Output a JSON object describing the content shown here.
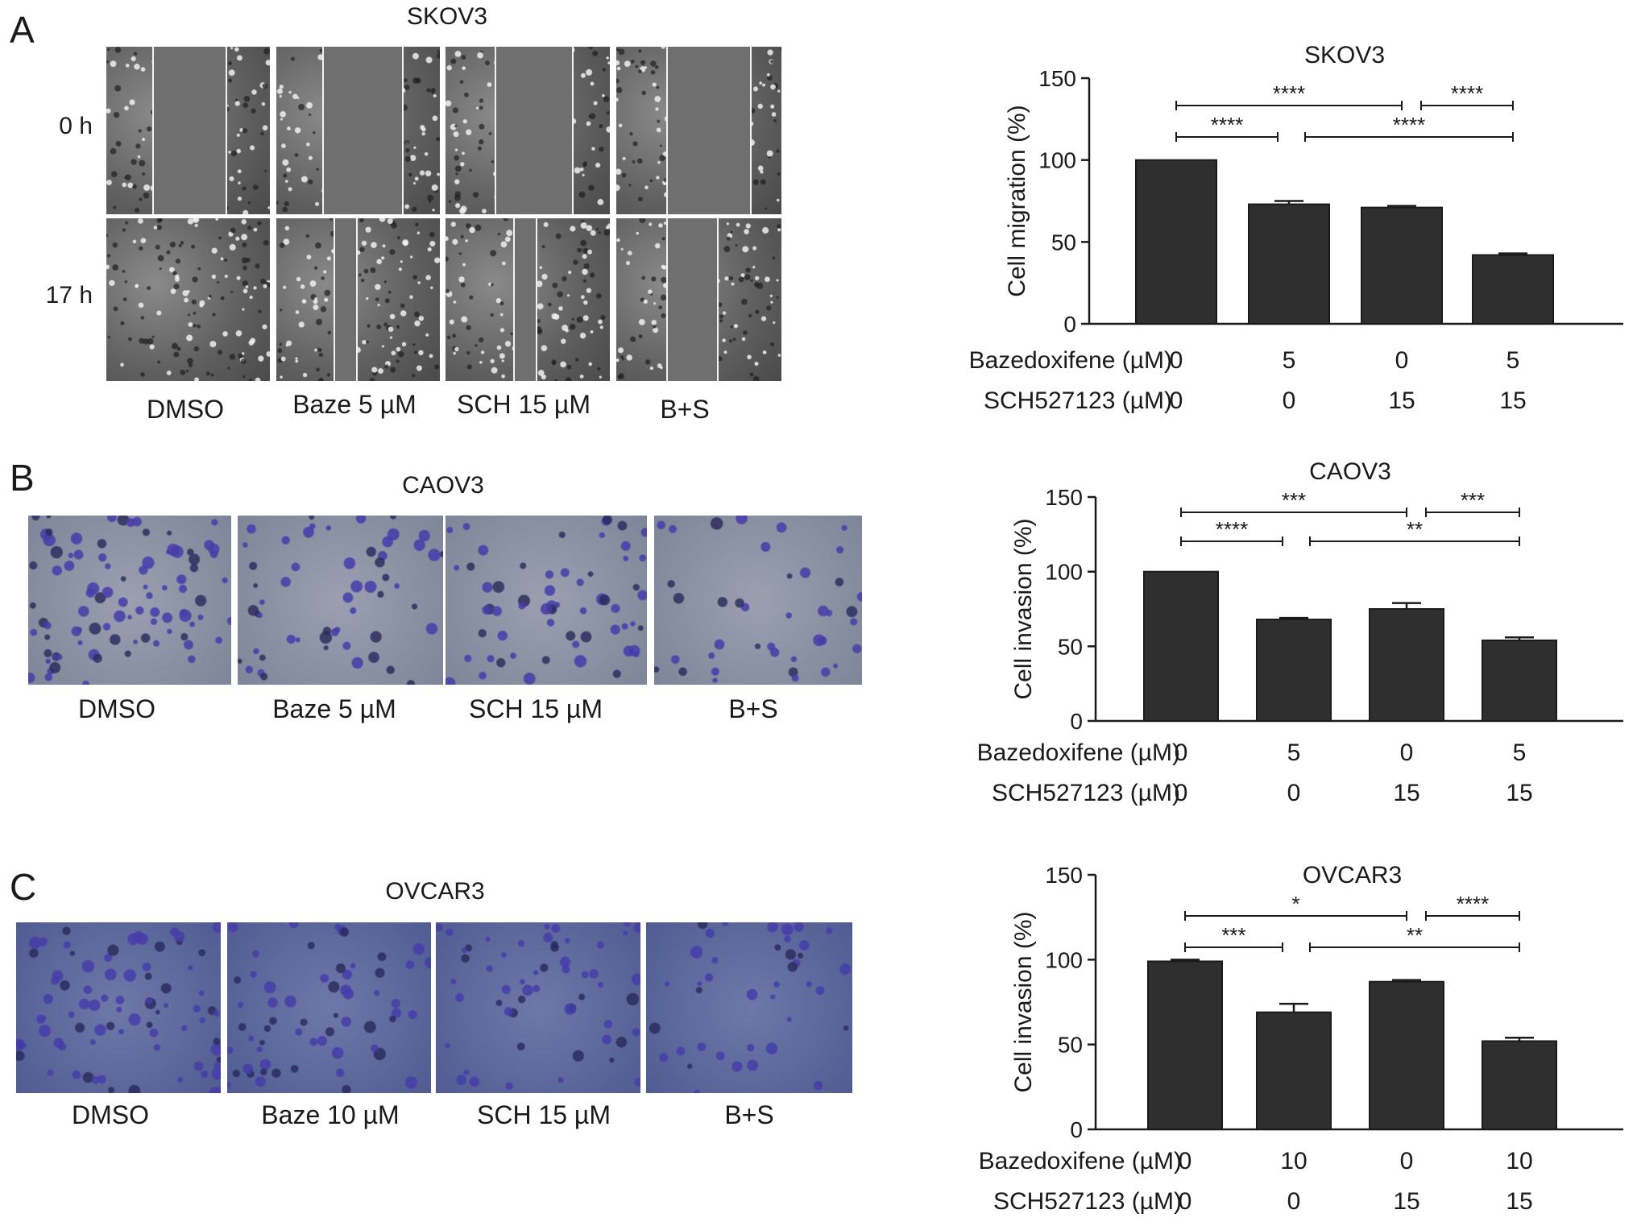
{
  "panels": [
    {
      "letter": "A",
      "image_title": "SKOV3",
      "row_labels": [
        "0 h",
        "17 h"
      ],
      "tile_labels": [
        "DMSO",
        "Baze 5 µM",
        "SCH 15 µM",
        "B+S"
      ],
      "image_style": "wound-healing-grayscale"
    },
    {
      "letter": "B",
      "image_title": "CAOV3",
      "tile_labels": [
        "DMSO",
        "Baze 5 µM",
        "SCH 15 µM",
        "B+S"
      ],
      "image_style": "transwell-crystal-violet"
    },
    {
      "letter": "C",
      "image_title": "OVCAR3",
      "tile_labels": [
        "DMSO",
        "Baze 10 µM",
        "SCH 15 µM",
        "B+S"
      ],
      "image_style": "transwell-crystal-violet"
    }
  ],
  "colors": {
    "bar": "#2f2f2f",
    "axis": "#1a1a1a",
    "stain": "#3a3fa8",
    "grayscale_bg": "#6e6e6e"
  },
  "chart_data": [
    {
      "type": "bar",
      "title": "SKOV3",
      "ylabel": "Cell migration (%)",
      "ylim": [
        0,
        150
      ],
      "yticks": [
        0,
        50,
        100,
        150
      ],
      "row_labels": [
        "Bazedoxifene (µM)",
        "SCH527123 (µM)"
      ],
      "conditions": [
        [
          "0",
          "5",
          "0",
          "5"
        ],
        [
          "0",
          "0",
          "15",
          "15"
        ]
      ],
      "values": [
        100,
        73,
        71,
        42
      ],
      "errors": [
        0,
        2,
        1,
        1
      ],
      "significance": [
        {
          "from": 0,
          "to": 2,
          "label": "****"
        },
        {
          "from": 2,
          "to": 3,
          "label": "****"
        },
        {
          "from": 0,
          "to": 1,
          "label": "****"
        },
        {
          "from": 1,
          "to": 3,
          "label": "****"
        }
      ]
    },
    {
      "type": "bar",
      "title": "CAOV3",
      "ylabel": "Cell invasion (%)",
      "ylim": [
        0,
        150
      ],
      "yticks": [
        0,
        50,
        100,
        150
      ],
      "row_labels": [
        "Bazedoxifene (µM)",
        "SCH527123 (µM)"
      ],
      "conditions": [
        [
          "0",
          "5",
          "0",
          "5"
        ],
        [
          "0",
          "0",
          "15",
          "15"
        ]
      ],
      "values": [
        100,
        68,
        75,
        54
      ],
      "errors": [
        0,
        1,
        4,
        2
      ],
      "significance": [
        {
          "from": 0,
          "to": 2,
          "label": "***"
        },
        {
          "from": 2,
          "to": 3,
          "label": "***"
        },
        {
          "from": 0,
          "to": 1,
          "label": "****"
        },
        {
          "from": 1,
          "to": 3,
          "label": "**"
        }
      ]
    },
    {
      "type": "bar",
      "title": "OVCAR3",
      "ylabel": "Cell invasion (%)",
      "ylim": [
        0,
        150
      ],
      "yticks": [
        0,
        50,
        100,
        150
      ],
      "row_labels": [
        "Bazedoxifene (µM)",
        "SCH527123 (µM)"
      ],
      "conditions": [
        [
          "0",
          "10",
          "0",
          "10"
        ],
        [
          "0",
          "0",
          "15",
          "15"
        ]
      ],
      "values": [
        99,
        69,
        87,
        52
      ],
      "errors": [
        1,
        5,
        1,
        2
      ],
      "significance": [
        {
          "from": 0,
          "to": 2,
          "label": "*"
        },
        {
          "from": 2,
          "to": 3,
          "label": "****"
        },
        {
          "from": 0,
          "to": 1,
          "label": "***"
        },
        {
          "from": 1,
          "to": 3,
          "label": "**"
        }
      ]
    }
  ]
}
